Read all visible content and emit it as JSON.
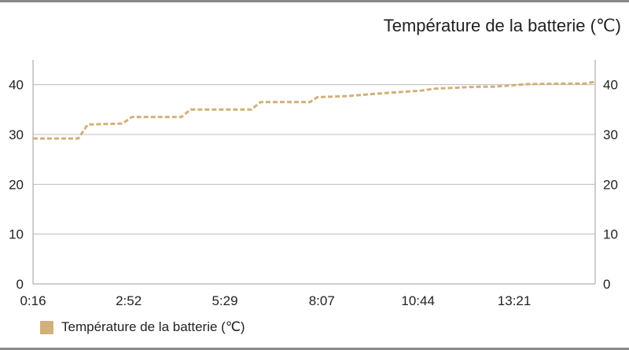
{
  "chart_data": {
    "type": "line",
    "title": "Température de la batterie (℃)",
    "x_tick_labels": [
      "0:16",
      "2:52",
      "5:29",
      "8:07",
      "10:44",
      "13:21"
    ],
    "x_tick_minutes": [
      0.267,
      2.867,
      5.483,
      8.117,
      10.733,
      13.35
    ],
    "xlim_minutes": [
      0.267,
      15.55
    ],
    "ylim": [
      0,
      45
    ],
    "y_ticks": [
      0,
      10,
      20,
      30,
      40
    ],
    "grid": true,
    "line_style": "dashed",
    "legend_position": "bottom-left",
    "series": [
      {
        "name": "Température de la batterie (℃)",
        "color": "#d2b07a",
        "x_minutes": [
          0.267,
          1.5,
          1.75,
          2.7,
          2.95,
          4.3,
          4.55,
          6.2,
          6.45,
          7.8,
          8.0,
          8.8,
          9.3,
          9.8,
          10.8,
          11.2,
          12.4,
          12.8,
          13.7,
          14.5,
          15.25,
          15.55
        ],
        "values": [
          29.2,
          29.2,
          32.0,
          32.2,
          33.5,
          33.5,
          35.0,
          35.0,
          36.5,
          36.5,
          37.5,
          37.7,
          38.0,
          38.3,
          38.8,
          39.2,
          39.6,
          39.6,
          40.1,
          40.2,
          40.2,
          40.6
        ]
      }
    ]
  }
}
